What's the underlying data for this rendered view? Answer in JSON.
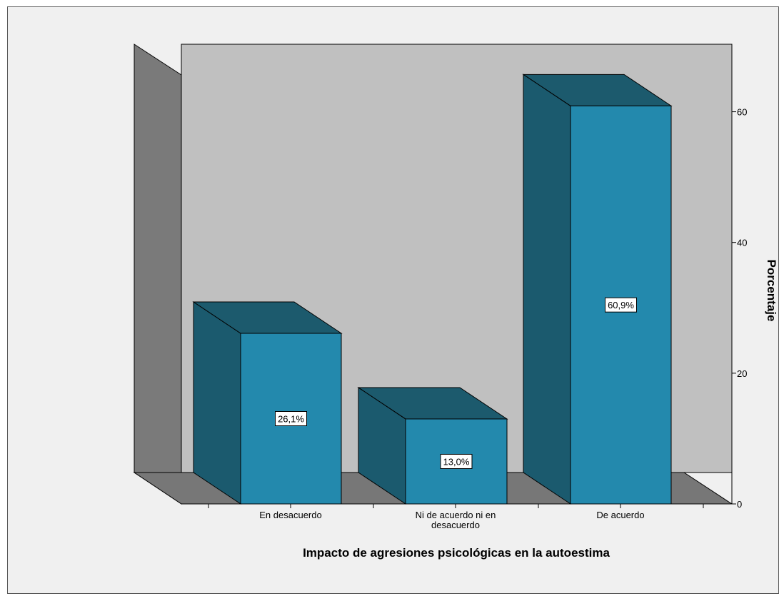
{
  "chart_data": {
    "type": "bar",
    "style": "3d",
    "categories": [
      "En desacuerdo",
      "Ni de acuerdo ni en desacuerdo",
      "De acuerdo"
    ],
    "category_lines": [
      [
        "En desacuerdo"
      ],
      [
        "Ni de acuerdo ni en",
        "desacuerdo"
      ],
      [
        "De acuerdo"
      ]
    ],
    "values": [
      26.1,
      13.0,
      60.9
    ],
    "value_labels": [
      "26,1%",
      "13,0%",
      "60,9%"
    ],
    "xlabel": "Impacto de agresiones psicológicas en la autoestima",
    "ylabel": "Porcentaje",
    "ylim": [
      0,
      70
    ],
    "yticks": [
      0,
      20,
      40,
      60
    ],
    "ytick_labels": [
      "0",
      "20",
      "40",
      "60"
    ],
    "y_axis_side": "right",
    "grid": false,
    "legend": "none",
    "colors": {
      "bar_front": "#2389ad",
      "bar_side": "#1b5a6e",
      "bar_top": "#1c5a6d",
      "back_wall": "#c0c0c0",
      "side_wall": "#7a7a7a",
      "floor": "#777777",
      "background": "#f0f0f0"
    }
  }
}
